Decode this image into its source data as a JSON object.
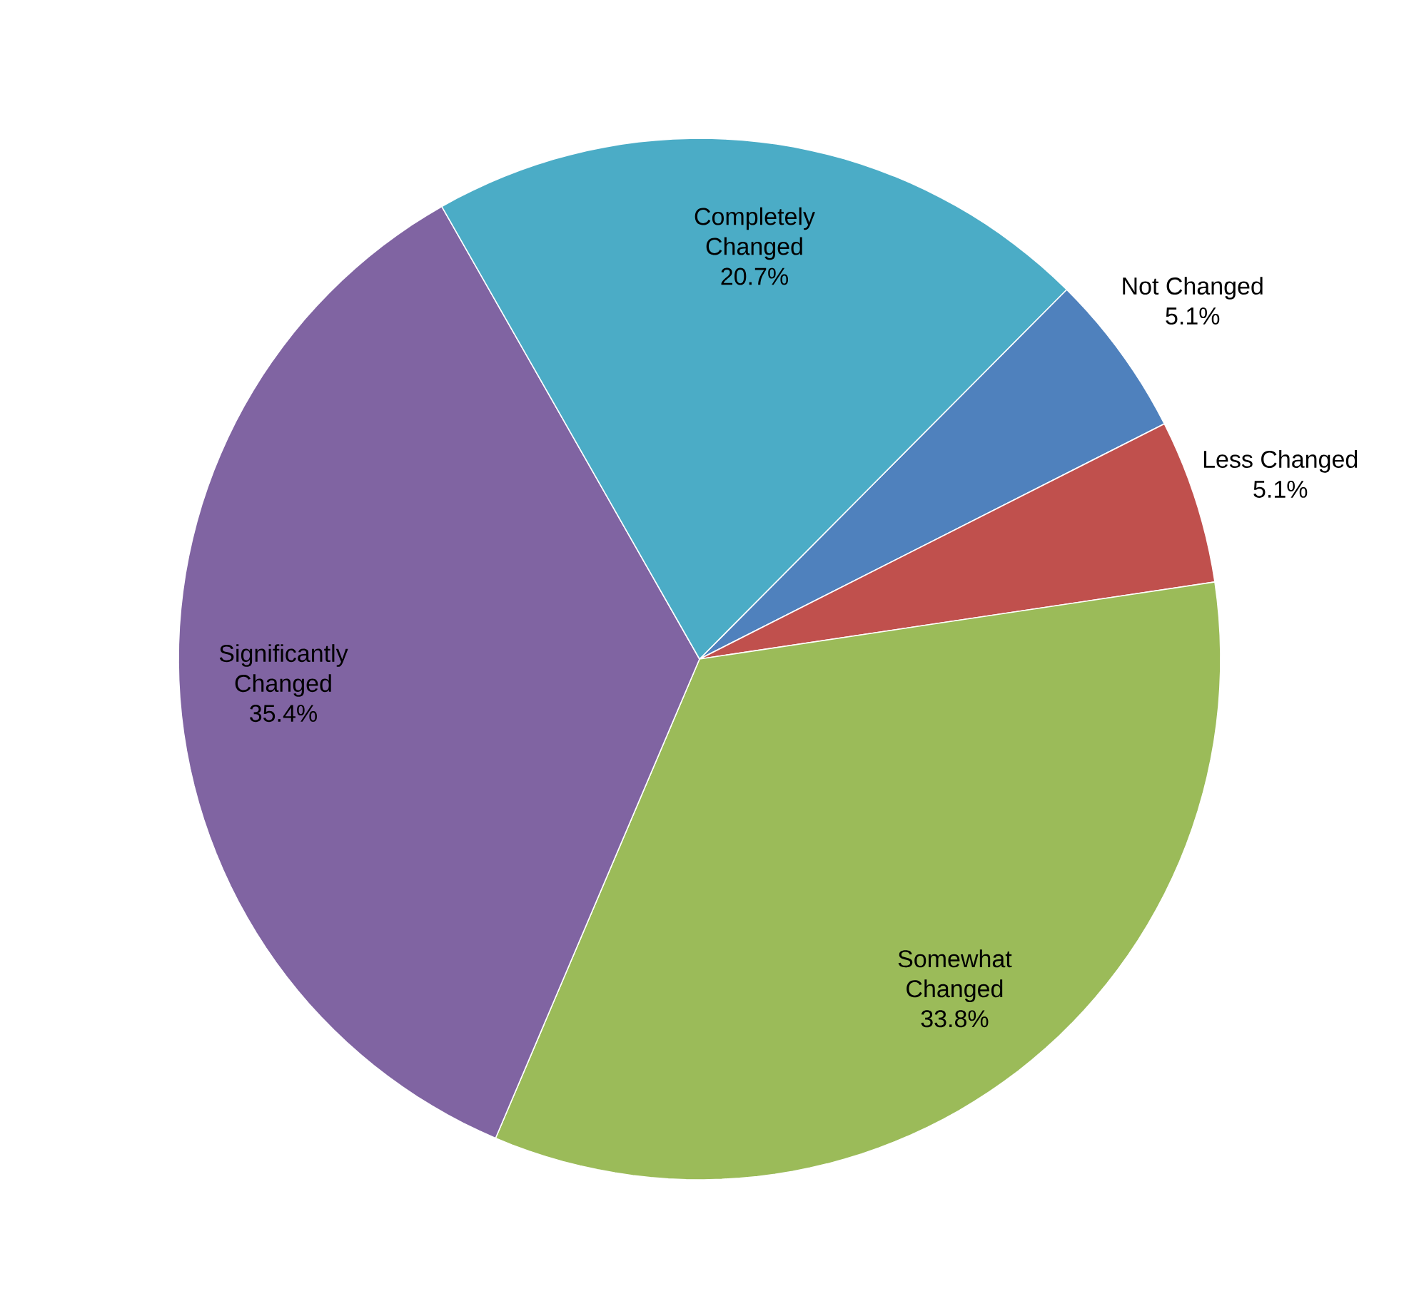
{
  "chart_data": {
    "type": "pie",
    "categories": [
      "Not Changed",
      "Less Changed",
      "Somewhat Changed",
      "Significantly Changed",
      "Completely Changed"
    ],
    "values": [
      5.1,
      5.1,
      33.8,
      35.4,
      20.7
    ],
    "value_labels": [
      "5.1%",
      "5.1%",
      "33.8%",
      "35.4%",
      "20.7%"
    ],
    "colors": [
      "#4f81bd",
      "#c0504d",
      "#9bbb59",
      "#8064a2",
      "#4bacc6"
    ]
  }
}
